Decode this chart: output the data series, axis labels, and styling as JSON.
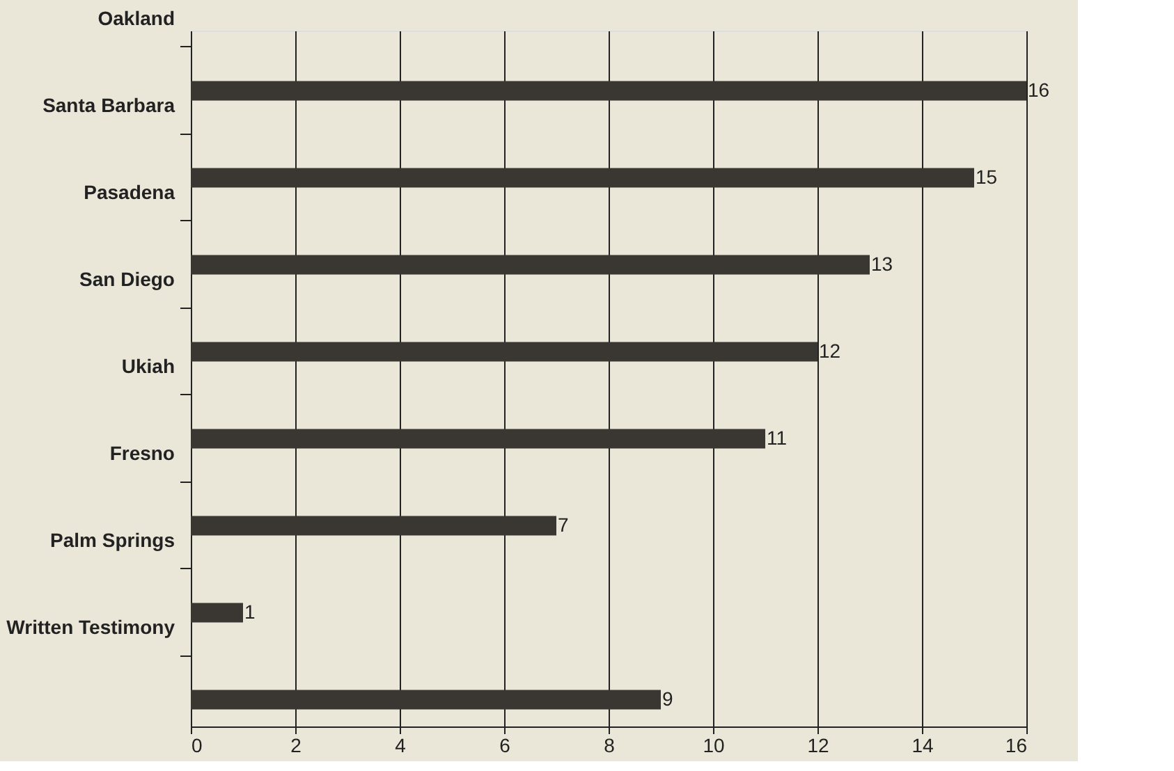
{
  "chart_data": {
    "type": "bar",
    "orientation": "horizontal",
    "categories": [
      "Oakland",
      "Santa Barbara",
      "Pasadena",
      "San Diego",
      "Ukiah",
      "Fresno",
      "Palm Springs",
      "Written Testimony"
    ],
    "values": [
      16,
      15,
      13,
      12,
      11,
      7,
      1,
      9
    ],
    "color": "#3a3632",
    "xlim": [
      0,
      16
    ],
    "xticks": [
      0,
      2,
      4,
      6,
      8,
      10,
      12,
      14,
      16
    ],
    "grid": "x",
    "data_labels": true
  }
}
